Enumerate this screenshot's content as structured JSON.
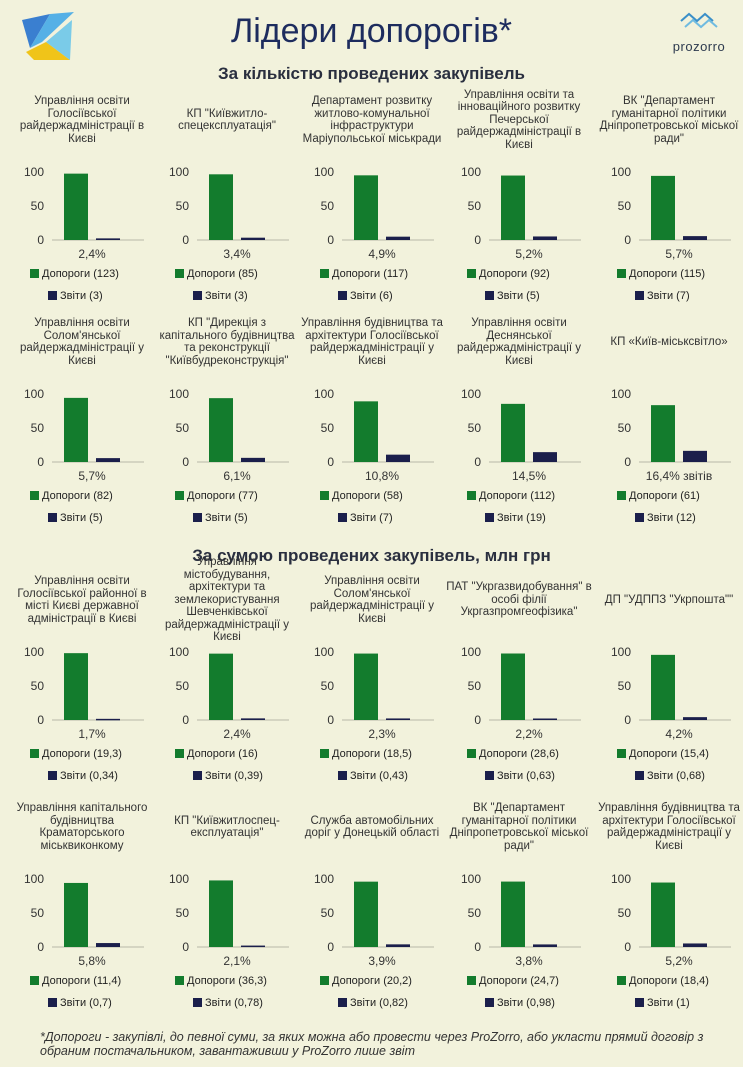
{
  "title": "Лідери допорогів*",
  "brand": "prozorro",
  "colors": {
    "dopor": "#137c2d",
    "zvity": "#1b1f4b",
    "background": "#f2f2dc"
  },
  "sections": [
    "За кількістю проведених закупівель",
    "За сумою проведених закупівель, млн грн"
  ],
  "footnote": "*Допороги - закупівлі, до певної суми, за яких можна або провести через ProZorro, або укласти прямий договір з обраним постачальником, завантаживши у ProZorro лише звіт",
  "chart_data": [
    {
      "type": "bar",
      "title": "Управління освіти Голосіївської райдержадміністрації в Києві",
      "categories": [
        "Допороги",
        "Звіти"
      ],
      "values": [
        97.6,
        2.4
      ],
      "ylim": [
        0,
        100
      ],
      "yticks": [
        "0",
        "50",
        "100"
      ],
      "share_label": "2,4%",
      "legend": [
        "Допороги (123)",
        "Звіти (3)"
      ]
    },
    {
      "type": "bar",
      "title": "КП \"Київжитло-спецексплуатація\"",
      "categories": [
        "Допороги",
        "Звіти"
      ],
      "values": [
        96.6,
        3.4
      ],
      "ylim": [
        0,
        100
      ],
      "yticks": [
        "0",
        "50",
        "100"
      ],
      "share_label": "3,4%",
      "legend": [
        "Допороги (85)",
        "Звіти (3)"
      ]
    },
    {
      "type": "bar",
      "title": "Департамент розвитку житлово-комунальної інфраструктури Маріупольської міськради",
      "categories": [
        "Допороги",
        "Звіти"
      ],
      "values": [
        95.1,
        4.9
      ],
      "ylim": [
        0,
        100
      ],
      "yticks": [
        "0",
        "50",
        "100"
      ],
      "share_label": "4,9%",
      "legend": [
        "Допороги (117)",
        "Звіти (6)"
      ]
    },
    {
      "type": "bar",
      "title": "Управління освіти та інноваційного розвитку Печерської райдержадміністрації в Києві",
      "categories": [
        "Допороги",
        "Звіти"
      ],
      "values": [
        94.8,
        5.2
      ],
      "ylim": [
        0,
        100
      ],
      "yticks": [
        "0",
        "50",
        "100"
      ],
      "share_label": "5,2%",
      "legend": [
        "Допороги (92)",
        "Звіти (5)"
      ]
    },
    {
      "type": "bar",
      "title": "ВК \"Департамент гуманітарної політики Дніпропетровської міської ради\"",
      "categories": [
        "Допороги",
        "Звіти"
      ],
      "values": [
        94.3,
        5.7
      ],
      "ylim": [
        0,
        100
      ],
      "yticks": [
        "0",
        "50",
        "100"
      ],
      "share_label": "5,7%",
      "legend": [
        "Допороги (115)",
        "Звіти (7)"
      ]
    },
    {
      "type": "bar",
      "title": "Управління освіти Солом'янської райдержадміністрації у Києві",
      "categories": [
        "Допороги",
        "Звіти"
      ],
      "values": [
        94.3,
        5.7
      ],
      "ylim": [
        0,
        100
      ],
      "yticks": [
        "0",
        "50",
        "100"
      ],
      "share_label": "5,7%",
      "legend": [
        "Допороги (82)",
        "Звіти (5)"
      ]
    },
    {
      "type": "bar",
      "title": "КП \"Дирекція з капітального будівництва та реконструкції \"Київбудреконструкція\"",
      "categories": [
        "Допороги",
        "Звіти"
      ],
      "values": [
        93.9,
        6.1
      ],
      "ylim": [
        0,
        100
      ],
      "yticks": [
        "0",
        "50",
        "100"
      ],
      "share_label": "6,1%",
      "legend": [
        "Допороги (77)",
        "Звіти (5)"
      ]
    },
    {
      "type": "bar",
      "title": "Управління будівництва та архітектури Голосіївської райдержадміністрації у Києві",
      "categories": [
        "Допороги",
        "Звіти"
      ],
      "values": [
        89.2,
        10.8
      ],
      "ylim": [
        0,
        100
      ],
      "yticks": [
        "0",
        "50",
        "100"
      ],
      "share_label": "10,8%",
      "legend": [
        "Допороги (58)",
        "Звіти (7)"
      ]
    },
    {
      "type": "bar",
      "title": "Управління освіти Деснянської райдержадміністрації у Києві",
      "categories": [
        "Допороги",
        "Звіти"
      ],
      "values": [
        85.5,
        14.5
      ],
      "ylim": [
        0,
        100
      ],
      "yticks": [
        "0",
        "50",
        "100"
      ],
      "share_label": "14,5%",
      "legend": [
        "Допороги (112)",
        "Звіти (19)"
      ]
    },
    {
      "type": "bar",
      "title": "КП «Київ-міськсвітло»",
      "categories": [
        "Допороги",
        "Звіти"
      ],
      "values": [
        83.6,
        16.4
      ],
      "ylim": [
        0,
        100
      ],
      "yticks": [
        "0",
        "50",
        "100"
      ],
      "share_label": "16,4% звітів",
      "legend": [
        "Допороги (61)",
        "Звіти (12)"
      ]
    },
    {
      "type": "bar",
      "title": "Управління освіти Голосіївської районної в місті Києві державної адміністрації в Києві",
      "categories": [
        "Допороги",
        "Звіти"
      ],
      "values": [
        98.3,
        1.7
      ],
      "ylim": [
        0,
        100
      ],
      "yticks": [
        "0",
        "50",
        "100"
      ],
      "share_label": "1,7%",
      "legend": [
        "Допороги (19,3)",
        "Звіти (0,34)"
      ]
    },
    {
      "type": "bar",
      "title": "Управління містобудування, архітектури та землекористування Шевченківської райдержадміністрації у Києві",
      "categories": [
        "Допороги",
        "Звіти"
      ],
      "values": [
        97.6,
        2.4
      ],
      "ylim": [
        0,
        100
      ],
      "yticks": [
        "0",
        "50",
        "100"
      ],
      "share_label": "2,4%",
      "legend": [
        "Допороги (16)",
        "Звіти (0,39)"
      ]
    },
    {
      "type": "bar",
      "title": "Управління освіти Солом'янської райдержадміністрації у Києві",
      "categories": [
        "Допороги",
        "Звіти"
      ],
      "values": [
        97.7,
        2.3
      ],
      "ylim": [
        0,
        100
      ],
      "yticks": [
        "0",
        "50",
        "100"
      ],
      "share_label": "2,3%",
      "legend": [
        "Допороги (18,5)",
        "Звіти (0,43)"
      ]
    },
    {
      "type": "bar",
      "title": "ПАТ \"Укргазвидобування\" в особі філії Укргазпромгеофізика\"",
      "categories": [
        "Допороги",
        "Звіти"
      ],
      "values": [
        97.8,
        2.2
      ],
      "ylim": [
        0,
        100
      ],
      "yticks": [
        "0",
        "50",
        "100"
      ],
      "share_label": "2,2%",
      "legend": [
        "Допороги (28,6)",
        "Звіти (0,63)"
      ]
    },
    {
      "type": "bar",
      "title": "ДП \"УДППЗ \"Укрпошта\"\"",
      "categories": [
        "Допороги",
        "Звіти"
      ],
      "values": [
        95.8,
        4.2
      ],
      "ylim": [
        0,
        100
      ],
      "yticks": [
        "0",
        "50",
        "100"
      ],
      "share_label": "4,2%",
      "legend": [
        "Допороги (15,4)",
        "Звіти (0,68)"
      ]
    },
    {
      "type": "bar",
      "title": "Управління капітального будівництва Краматорського міськвиконкому",
      "categories": [
        "Допороги",
        "Звіти"
      ],
      "values": [
        94.2,
        5.8
      ],
      "ylim": [
        0,
        100
      ],
      "yticks": [
        "0",
        "50",
        "100"
      ],
      "share_label": "5,8%",
      "legend": [
        "Допороги (11,4)",
        "Звіти (0,7)"
      ]
    },
    {
      "type": "bar",
      "title": "КП \"Київжитлоспец-експлуатація\"",
      "categories": [
        "Допороги",
        "Звіти"
      ],
      "values": [
        97.9,
        2.1
      ],
      "ylim": [
        0,
        100
      ],
      "yticks": [
        "0",
        "50",
        "100"
      ],
      "share_label": "2,1%",
      "legend": [
        "Допороги (36,3)",
        "Звіти (0,78)"
      ]
    },
    {
      "type": "bar",
      "title": "Служба автомобільних доріг у Донецькій області",
      "categories": [
        "Допороги",
        "Звіти"
      ],
      "values": [
        96.1,
        3.9
      ],
      "ylim": [
        0,
        100
      ],
      "yticks": [
        "0",
        "50",
        "100"
      ],
      "share_label": "3,9%",
      "legend": [
        "Допороги (20,2)",
        "Звіти (0,82)"
      ]
    },
    {
      "type": "bar",
      "title": "ВК \"Департамент гуманітарної політики Дніпропетровської міської ради\"",
      "categories": [
        "Допороги",
        "Звіти"
      ],
      "values": [
        96.2,
        3.8
      ],
      "ylim": [
        0,
        100
      ],
      "yticks": [
        "0",
        "50",
        "100"
      ],
      "share_label": "3,8%",
      "legend": [
        "Допороги (24,7)",
        "Звіти (0,98)"
      ]
    },
    {
      "type": "bar",
      "title": "Управління будівництва та архітектури Голосіївської райдержадміністрації у Києві",
      "categories": [
        "Допороги",
        "Звіти"
      ],
      "values": [
        94.8,
        5.2
      ],
      "ylim": [
        0,
        100
      ],
      "yticks": [
        "0",
        "50",
        "100"
      ],
      "share_label": "5,2%",
      "legend": [
        "Допороги (18,4)",
        "Звіти (1)"
      ]
    }
  ]
}
